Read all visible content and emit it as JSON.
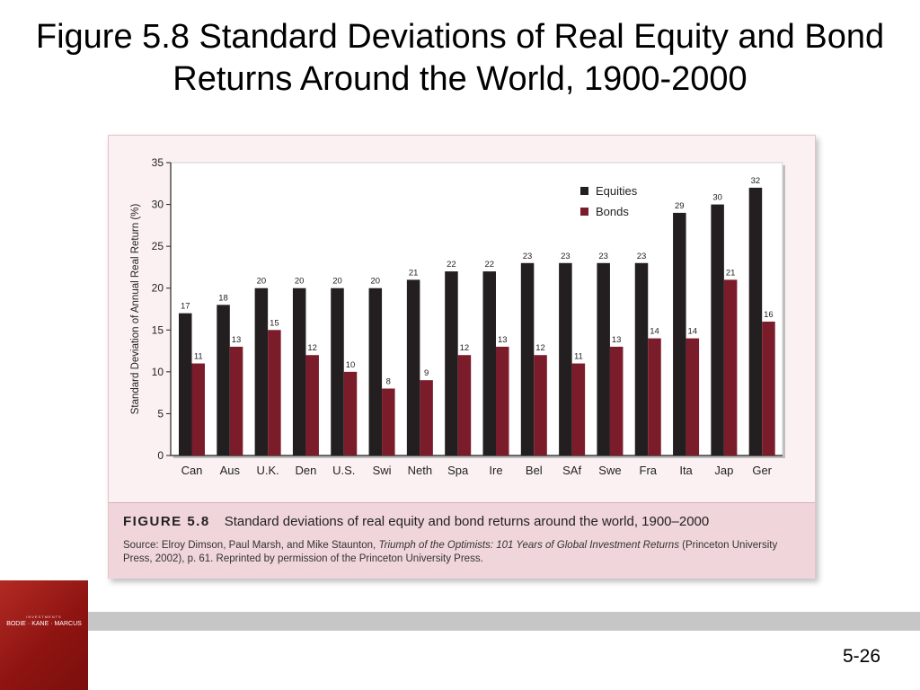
{
  "slide": {
    "title": "Figure 5.8 Standard Deviations of Real Equity and Bond Returns Around the World, 1900-2000",
    "slide_number": "5-26"
  },
  "logo": {
    "top_text": "INVESTMENTS",
    "names": "BODIE · KANE · MARCUS"
  },
  "caption": {
    "label": "FIGURE 5.8",
    "text": "Standard deviations of real equity and bond returns around the world, 1900–2000",
    "source_prefix": "Source: Elroy Dimson, Paul Marsh, and Mike Staunton, ",
    "source_book": "Triumph of the Optimists: 101 Years of Global Investment Returns",
    "source_suffix": " (Princeton University Press, 2002), p. 61. Reprinted by permission of the Princeton University Press."
  },
  "colors": {
    "equities": "#231f20",
    "bonds": "#7b1c2b",
    "plot_bg": "#ffffff",
    "axis": "#222222"
  },
  "chart_data": {
    "type": "bar",
    "title": "",
    "xlabel": "",
    "ylabel": "Standard Deviation of Annual Real Return (%)",
    "ylim": [
      0,
      35
    ],
    "yticks": [
      0,
      5,
      10,
      15,
      20,
      25,
      30,
      35
    ],
    "legend_position": "top-right",
    "categories": [
      "Can",
      "Aus",
      "U.K.",
      "Den",
      "U.S.",
      "Swi",
      "Neth",
      "Spa",
      "Ire",
      "Bel",
      "SAf",
      "Swe",
      "Fra",
      "Ita",
      "Jap",
      "Ger"
    ],
    "series": [
      {
        "name": "Equities",
        "values": [
          17,
          18,
          20,
          20,
          20,
          20,
          21,
          22,
          22,
          23,
          23,
          23,
          23,
          29,
          30,
          32
        ]
      },
      {
        "name": "Bonds",
        "values": [
          11,
          13,
          15,
          12,
          10,
          8,
          9,
          12,
          13,
          12,
          11,
          13,
          14,
          14,
          21,
          16
        ]
      }
    ]
  }
}
